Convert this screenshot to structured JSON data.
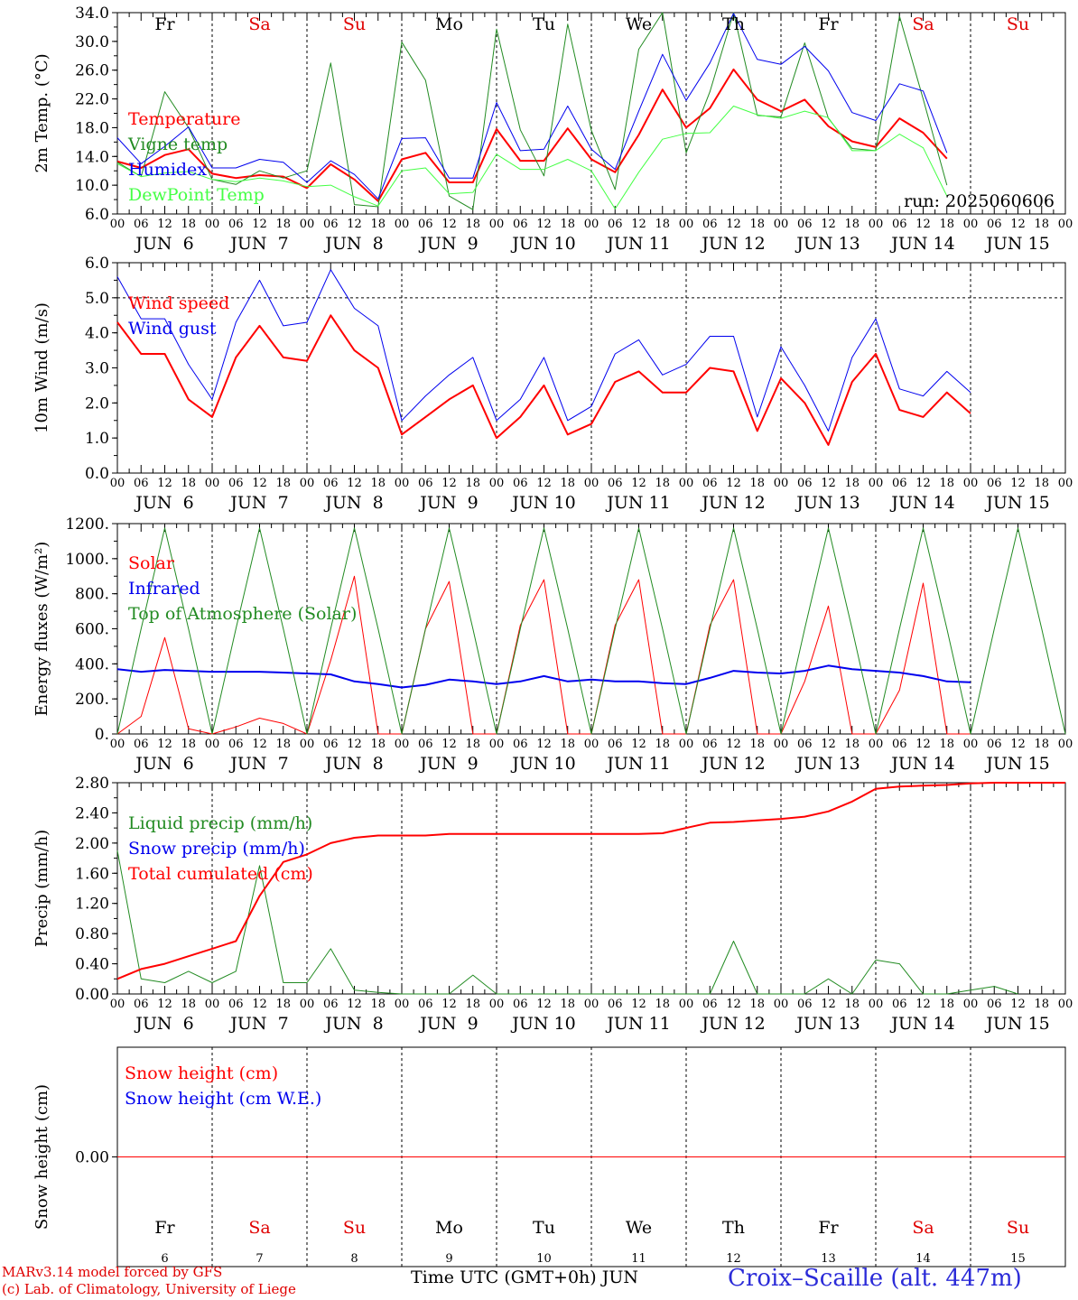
{
  "chart_data": [
    {
      "type": "line",
      "ylabel": "2m Temp. (°C)",
      "ylim": [
        6.0,
        34.0
      ],
      "yticks": [
        "6.0",
        "10.0",
        "14.0",
        "18.0",
        "22.0",
        "26.0",
        "30.0",
        "34.0"
      ],
      "run_label": "run: 2025060606",
      "weekday_labels": [
        {
          "text": "Fr",
          "color": "#000000"
        },
        {
          "text": "Sa",
          "color": "#e00000"
        },
        {
          "text": "Su",
          "color": "#e00000"
        },
        {
          "text": "Mo",
          "color": "#000000"
        },
        {
          "text": "Tu",
          "color": "#000000"
        },
        {
          "text": "We",
          "color": "#000000"
        },
        {
          "text": "Th",
          "color": "#000000"
        },
        {
          "text": "Fr",
          "color": "#000000"
        },
        {
          "text": "Sa",
          "color": "#e00000"
        },
        {
          "text": "Su",
          "color": "#e00000"
        }
      ],
      "x_hours": [
        0,
        6,
        12,
        18,
        24,
        30,
        36,
        42,
        48,
        54,
        60,
        66,
        72,
        78,
        84,
        90,
        96,
        102,
        108,
        114,
        120,
        126,
        132,
        138,
        144,
        150,
        156,
        162,
        168,
        174,
        180,
        186,
        192,
        198,
        204,
        210,
        216,
        222,
        228,
        234,
        240
      ],
      "series": [
        {
          "name": "Temperature",
          "color": "#ff0000",
          "width": 2,
          "values": [
            13.3,
            12.4,
            14.2,
            15.0,
            11.6,
            11.0,
            11.4,
            11.2,
            9.6,
            12.9,
            10.8,
            7.8,
            13.6,
            14.5,
            10.4,
            10.4,
            17.8,
            13.4,
            13.4,
            17.9,
            13.6,
            11.8,
            17.0,
            23.3,
            18.0,
            20.7,
            26.1,
            21.9,
            20.3,
            21.9,
            18.2,
            16.1,
            15.3,
            19.3,
            17.3,
            13.7,
            null,
            null,
            null,
            null,
            null
          ]
        },
        {
          "name": "Vigne temp",
          "color": "#228b22",
          "width": 1,
          "values": [
            13.2,
            11.2,
            23.0,
            18.0,
            10.8,
            10.1,
            12.0,
            11.0,
            12.0,
            27.0,
            7.3,
            7.0,
            29.9,
            24.6,
            8.5,
            6.6,
            31.7,
            17.7,
            11.3,
            32.4,
            17.6,
            9.4,
            28.9,
            38.2,
            14.5,
            23.0,
            37.9,
            19.7,
            19.5,
            29.8,
            19.3,
            15.1,
            14.8,
            33.5,
            22.0,
            10.0,
            null,
            null,
            null,
            null,
            null
          ]
        },
        {
          "name": "Humidex",
          "color": "#0000ee",
          "width": 1,
          "values": [
            16.6,
            13.0,
            15.4,
            18.1,
            12.4,
            12.4,
            13.6,
            13.2,
            10.4,
            13.4,
            11.5,
            8.1,
            16.5,
            16.6,
            11.0,
            11.0,
            21.5,
            14.8,
            15.0,
            21.0,
            15.0,
            12.2,
            20.3,
            28.2,
            21.8,
            27.0,
            33.9,
            27.5,
            26.8,
            29.3,
            25.9,
            20.1,
            19.0,
            24.1,
            23.1,
            14.5,
            null,
            null,
            null,
            null,
            null
          ]
        },
        {
          "name": "DewPoint Temp",
          "color": "#44ff44",
          "width": 1,
          "values": [
            13.0,
            11.2,
            11.7,
            11.9,
            10.8,
            10.5,
            11.0,
            10.6,
            9.8,
            10.0,
            8.4,
            7.1,
            12.0,
            12.4,
            8.8,
            9.0,
            14.3,
            12.2,
            12.2,
            13.6,
            12.0,
            6.7,
            11.8,
            16.4,
            17.2,
            17.3,
            21.0,
            19.8,
            19.3,
            20.3,
            19.4,
            14.8,
            14.8,
            17.1,
            15.2,
            8.5,
            null,
            null,
            null,
            null,
            null
          ]
        }
      ]
    },
    {
      "type": "line",
      "ylabel": "10m Wind (m/s)",
      "ylim": [
        0.0,
        6.0
      ],
      "yticks": [
        "0.0",
        "1.0",
        "2.0",
        "3.0",
        "4.0",
        "5.0",
        "6.0"
      ],
      "refline": 5.0,
      "x_hours": [
        0,
        6,
        12,
        18,
        24,
        30,
        36,
        42,
        48,
        54,
        60,
        66,
        72,
        78,
        84,
        90,
        96,
        102,
        108,
        114,
        120,
        126,
        132,
        138,
        144,
        150,
        156,
        162,
        168,
        174,
        180,
        186,
        192,
        198,
        204,
        210,
        216,
        222,
        228,
        234,
        240
      ],
      "series": [
        {
          "name": "Wind speed",
          "color": "#ff0000",
          "width": 2,
          "values": [
            4.3,
            3.4,
            3.4,
            2.1,
            1.6,
            3.3,
            4.2,
            3.3,
            3.2,
            4.5,
            3.5,
            3.0,
            1.1,
            1.6,
            2.1,
            2.5,
            1.0,
            1.6,
            2.5,
            1.1,
            1.4,
            2.6,
            2.9,
            2.3,
            2.3,
            3.0,
            2.9,
            1.2,
            2.7,
            2.0,
            0.8,
            2.6,
            3.4,
            1.8,
            1.6,
            2.3,
            1.7,
            null,
            null,
            null,
            null
          ]
        },
        {
          "name": "Wind gust",
          "color": "#0000ee",
          "width": 1,
          "values": [
            5.6,
            4.4,
            4.4,
            3.1,
            2.1,
            4.3,
            5.5,
            4.2,
            4.3,
            5.8,
            4.7,
            4.2,
            1.5,
            2.2,
            2.8,
            3.3,
            1.5,
            2.1,
            3.3,
            1.5,
            1.9,
            3.4,
            3.8,
            2.8,
            3.1,
            3.9,
            3.9,
            1.6,
            3.6,
            2.5,
            1.2,
            3.3,
            4.4,
            2.4,
            2.2,
            2.9,
            2.3,
            null,
            null,
            null,
            null
          ]
        }
      ]
    },
    {
      "type": "line",
      "ylabel": "Energy fluxes (W/m²)",
      "ylim": [
        0,
        1200
      ],
      "yticks": [
        "0.",
        "200.",
        "400.",
        "600.",
        "800.",
        "1000.",
        "1200."
      ],
      "x_hours": [
        0,
        6,
        12,
        18,
        24,
        30,
        36,
        42,
        48,
        54,
        60,
        66,
        72,
        78,
        84,
        90,
        96,
        102,
        108,
        114,
        120,
        126,
        132,
        138,
        144,
        150,
        156,
        162,
        168,
        174,
        180,
        186,
        192,
        198,
        204,
        210,
        216,
        222,
        228,
        234,
        240
      ],
      "series": [
        {
          "name": "Solar",
          "color": "#ff0000",
          "width": 1,
          "values": [
            0,
            100,
            550,
            30,
            0,
            40,
            90,
            60,
            0,
            420,
            900,
            0,
            0,
            600,
            870,
            0,
            0,
            620,
            880,
            0,
            0,
            620,
            880,
            0,
            0,
            620,
            880,
            0,
            0,
            300,
            730,
            0,
            0,
            250,
            860,
            0,
            0,
            null,
            null,
            null,
            null
          ]
        },
        {
          "name": "Infrared",
          "color": "#0000ee",
          "width": 2,
          "values": [
            370,
            355,
            365,
            360,
            355,
            355,
            355,
            350,
            345,
            340,
            300,
            285,
            265,
            280,
            310,
            300,
            285,
            300,
            330,
            300,
            310,
            300,
            300,
            290,
            285,
            320,
            360,
            350,
            345,
            360,
            390,
            370,
            360,
            350,
            330,
            300,
            295,
            null,
            null,
            null,
            null
          ]
        },
        {
          "name": "Top of Atmosphere (Solar)",
          "color": "#228b22",
          "width": 1,
          "values": [
            0,
            600,
            1175,
            600,
            0,
            600,
            1175,
            600,
            0,
            600,
            1175,
            600,
            0,
            600,
            1175,
            600,
            0,
            600,
            1175,
            600,
            0,
            600,
            1175,
            600,
            0,
            600,
            1175,
            600,
            0,
            600,
            1175,
            600,
            0,
            600,
            1175,
            600,
            0,
            600,
            1175,
            600,
            0
          ]
        }
      ]
    },
    {
      "type": "line",
      "ylabel": "Precip (mm/h)",
      "ylim": [
        0.0,
        2.8
      ],
      "yticks": [
        "0.00",
        "0.40",
        "0.80",
        "1.20",
        "1.60",
        "2.00",
        "2.40",
        "2.80"
      ],
      "x_hours": [
        0,
        6,
        12,
        18,
        24,
        30,
        36,
        42,
        48,
        54,
        60,
        66,
        72,
        78,
        84,
        90,
        96,
        102,
        108,
        114,
        120,
        126,
        132,
        138,
        144,
        150,
        156,
        162,
        168,
        174,
        180,
        186,
        192,
        198,
        204,
        210,
        216,
        222,
        228,
        234,
        240
      ],
      "series": [
        {
          "name": "Liquid precip (mm/h)",
          "color": "#228b22",
          "width": 1,
          "values": [
            1.9,
            0.2,
            0.15,
            0.3,
            0.15,
            0.3,
            1.7,
            0.15,
            0.15,
            0.6,
            0.05,
            0.02,
            0.0,
            0.0,
            0.0,
            0.25,
            0.0,
            0.0,
            0.0,
            0.0,
            0.0,
            0.0,
            0.0,
            0.0,
            0.0,
            0.0,
            0.7,
            0.0,
            0.0,
            0.0,
            0.2,
            0.0,
            0.45,
            0.4,
            0.0,
            0.0,
            0.05,
            0.1,
            0.0,
            null,
            null
          ]
        },
        {
          "name": "Snow precip (mm/h)",
          "color": "#0000ee",
          "width": 1,
          "values": []
        },
        {
          "name": "Total cumulated (cm)",
          "color": "#ff0000",
          "width": 2,
          "values": [
            0.2,
            0.33,
            0.4,
            0.5,
            0.6,
            0.7,
            1.3,
            1.75,
            1.85,
            2.0,
            2.07,
            2.1,
            2.1,
            2.1,
            2.12,
            2.12,
            2.12,
            2.12,
            2.12,
            2.12,
            2.12,
            2.12,
            2.12,
            2.13,
            2.2,
            2.27,
            2.28,
            2.3,
            2.32,
            2.35,
            2.42,
            2.55,
            2.72,
            2.75,
            2.76,
            2.77,
            2.79,
            2.8,
            2.8,
            2.8,
            2.8
          ]
        }
      ]
    },
    {
      "type": "line",
      "ylabel": "Snow height (cm)",
      "ylim": [
        -1,
        1
      ],
      "yticks": [
        "0.00"
      ],
      "day_numbers": [
        "6",
        "7",
        "8",
        "9",
        "10",
        "11",
        "12",
        "13",
        "14",
        "15"
      ],
      "series": [
        {
          "name": "Snow height (cm)",
          "color": "#ff0000",
          "width": 1,
          "values": [
            0,
            0
          ]
        },
        {
          "name": "Snow height (cm W.E.)",
          "color": "#0000ee",
          "width": 1,
          "values": []
        }
      ]
    }
  ],
  "x_axis": {
    "hour_labels": [
      "00",
      "06",
      "12",
      "18"
    ],
    "end_label": "00",
    "day_labels": [
      "JUN  6",
      "JUN  7",
      "JUN  8",
      "JUN  9",
      "JUN 10",
      "JUN 11",
      "JUN 12",
      "JUN 13",
      "JUN 14",
      "JUN 15"
    ],
    "xlabel": "Time UTC (GMT+0h) JUN"
  },
  "footer": {
    "model_line": "MARv3.14 model forced by GFS",
    "credit_line": "(c) Lab. of Climatology, University of Liege",
    "station": "Croix–Scaille (alt. 447m)"
  }
}
